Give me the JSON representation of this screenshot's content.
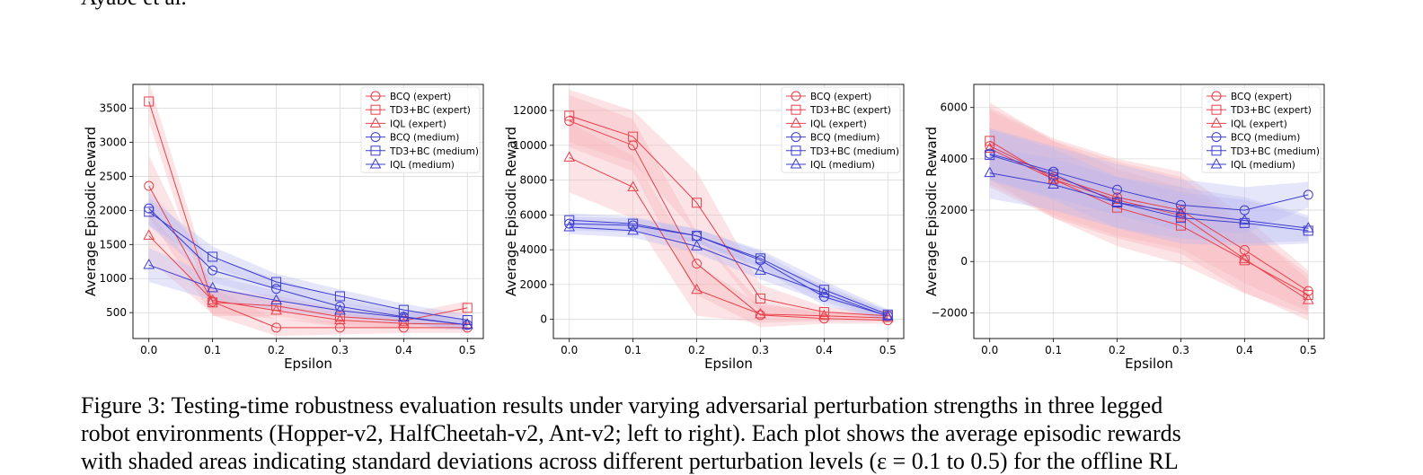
{
  "header": {
    "running_head": "Ayabe et al."
  },
  "caption": {
    "line1": "Figure 3: Testing-time robustness evaluation results under varying adversarial perturbation strengths in three legged",
    "line2": "robot environments (Hopper-v2, HalfCheetah-v2, Ant-v2; left to right). Each plot shows the average episodic rewards",
    "line3": "with shaded areas indicating standard deviations across different perturbation levels (ε = 0.1 to 0.5) for the offline RL"
  },
  "colors": {
    "expert": "#e8404a",
    "medium": "#3c3ccf",
    "expert_band": "#f6b3b6",
    "medium_band": "#b7b7f0"
  },
  "chart_data": [
    {
      "type": "line",
      "xlabel": "Epsilon",
      "ylabel": "Average Episodic Reward",
      "x": [
        0.0,
        0.1,
        0.2,
        0.3,
        0.4,
        0.5
      ],
      "xticks": [
        "0.0",
        "0.1",
        "0.2",
        "0.3",
        "0.4",
        "0.5"
      ],
      "yticks": [
        500,
        1000,
        1500,
        2000,
        2500,
        3000,
        3500
      ],
      "ytick_labels": [
        "500",
        "1000",
        "1500",
        "2000",
        "2500",
        "3000",
        "3500"
      ],
      "xlim": [
        -0.025,
        0.525
      ],
      "ylim": [
        120,
        3850
      ],
      "grid": true,
      "legend": "top-right",
      "series": [
        {
          "name": "BCQ (expert)",
          "group": "expert",
          "marker": "circle",
          "values": [
            2360,
            660,
            280,
            280,
            280,
            280
          ],
          "std": [
            450,
            200,
            120,
            100,
            80,
            80
          ]
        },
        {
          "name": "TD3+BC (expert)",
          "group": "expert",
          "marker": "square",
          "values": [
            3600,
            650,
            600,
            440,
            380,
            570
          ],
          "std": [
            300,
            200,
            150,
            120,
            100,
            100
          ]
        },
        {
          "name": "IQL (expert)",
          "group": "expert",
          "marker": "triangle",
          "values": [
            1630,
            680,
            530,
            390,
            340,
            330
          ],
          "std": [
            350,
            200,
            120,
            100,
            80,
            80
          ]
        },
        {
          "name": "BCQ (medium)",
          "group": "medium",
          "marker": "circle",
          "values": [
            2030,
            1120,
            850,
            590,
            440,
            320
          ],
          "std": [
            250,
            180,
            150,
            120,
            100,
            80
          ]
        },
        {
          "name": "TD3+BC (medium)",
          "group": "medium",
          "marker": "square",
          "values": [
            1980,
            1320,
            950,
            740,
            540,
            390
          ],
          "std": [
            200,
            150,
            120,
            100,
            90,
            80
          ]
        },
        {
          "name": "IQL (medium)",
          "group": "medium",
          "marker": "triangle",
          "values": [
            1200,
            860,
            680,
            530,
            430,
            320
          ],
          "std": [
            250,
            180,
            140,
            110,
            90,
            80
          ]
        }
      ]
    },
    {
      "type": "line",
      "xlabel": "Epsilon",
      "ylabel": "Average Episodic Reward",
      "x": [
        0.0,
        0.1,
        0.2,
        0.3,
        0.4,
        0.5
      ],
      "xticks": [
        "0.0",
        "0.1",
        "0.2",
        "0.3",
        "0.4",
        "0.5"
      ],
      "yticks": [
        0,
        2000,
        4000,
        6000,
        8000,
        10000,
        12000
      ],
      "ytick_labels": [
        "0",
        "2000",
        "4000",
        "6000",
        "8000",
        "10000",
        "12000"
      ],
      "xlim": [
        -0.025,
        0.525
      ],
      "ylim": [
        -1100,
        13500
      ],
      "grid": true,
      "legend": "top-right",
      "series": [
        {
          "name": "BCQ (expert)",
          "group": "expert",
          "marker": "circle",
          "values": [
            11400,
            10000,
            3200,
            250,
            50,
            -50
          ],
          "std": [
            1500,
            1500,
            1800,
            700,
            300,
            200
          ]
        },
        {
          "name": "TD3+BC (expert)",
          "group": "expert",
          "marker": "square",
          "values": [
            11700,
            10500,
            6700,
            1200,
            420,
            200
          ],
          "std": [
            1500,
            1500,
            1800,
            800,
            300,
            200
          ]
        },
        {
          "name": "IQL (expert)",
          "group": "expert",
          "marker": "triangle",
          "values": [
            9300,
            7600,
            1700,
            300,
            200,
            80
          ],
          "std": [
            2000,
            1800,
            1500,
            500,
            300,
            200
          ]
        },
        {
          "name": "BCQ (medium)",
          "group": "medium",
          "marker": "circle",
          "values": [
            5500,
            5400,
            4800,
            3400,
            1300,
            200
          ],
          "std": [
            400,
            400,
            400,
            500,
            500,
            300
          ]
        },
        {
          "name": "TD3+BC (medium)",
          "group": "medium",
          "marker": "square",
          "values": [
            5700,
            5500,
            4800,
            3500,
            1700,
            280
          ],
          "std": [
            400,
            400,
            400,
            500,
            500,
            300
          ]
        },
        {
          "name": "IQL (medium)",
          "group": "medium",
          "marker": "triangle",
          "values": [
            5300,
            5100,
            4200,
            2800,
            1500,
            180
          ],
          "std": [
            400,
            400,
            400,
            500,
            500,
            300
          ]
        }
      ]
    },
    {
      "type": "line",
      "xlabel": "Epsilon",
      "ylabel": "Average Episodic Reward",
      "x": [
        0.0,
        0.1,
        0.2,
        0.3,
        0.4,
        0.5
      ],
      "xticks": [
        "0.0",
        "0.1",
        "0.2",
        "0.3",
        "0.4",
        "0.5"
      ],
      "yticks": [
        -2000,
        0,
        2000,
        4000,
        6000
      ],
      "ytick_labels": [
        "−2000",
        "0",
        "2000",
        "4000",
        "6000"
      ],
      "xlim": [
        -0.025,
        0.525
      ],
      "ylim": [
        -3000,
        6900
      ],
      "grid": true,
      "legend": "top-right",
      "series": [
        {
          "name": "BCQ (expert)",
          "group": "expert",
          "marker": "circle",
          "values": [
            4500,
            3300,
            2500,
            2000,
            450,
            -1150
          ],
          "std": [
            1500,
            1500,
            1500,
            1500,
            1300,
            800
          ]
        },
        {
          "name": "TD3+BC (expert)",
          "group": "expert",
          "marker": "square",
          "values": [
            4700,
            3200,
            2100,
            1400,
            50,
            -1300
          ],
          "std": [
            1500,
            1500,
            1500,
            1500,
            1300,
            800
          ]
        },
        {
          "name": "IQL (expert)",
          "group": "expert",
          "marker": "triangle",
          "values": [
            4400,
            3200,
            2400,
            1800,
            100,
            -1500
          ],
          "std": [
            1500,
            1500,
            1500,
            1500,
            1300,
            800
          ]
        },
        {
          "name": "BCQ (medium)",
          "group": "medium",
          "marker": "circle",
          "values": [
            4200,
            3500,
            2800,
            2200,
            2000,
            2600
          ],
          "std": [
            1000,
            1000,
            1000,
            1000,
            900,
            500
          ]
        },
        {
          "name": "TD3+BC (medium)",
          "group": "medium",
          "marker": "square",
          "values": [
            4150,
            3400,
            2300,
            1700,
            1500,
            1200
          ],
          "std": [
            1000,
            1000,
            1000,
            1000,
            900,
            500
          ]
        },
        {
          "name": "IQL (medium)",
          "group": "medium",
          "marker": "triangle",
          "values": [
            3450,
            3000,
            2300,
            1900,
            1600,
            1300
          ],
          "std": [
            1000,
            1000,
            1000,
            1000,
            900,
            500
          ]
        }
      ]
    }
  ]
}
